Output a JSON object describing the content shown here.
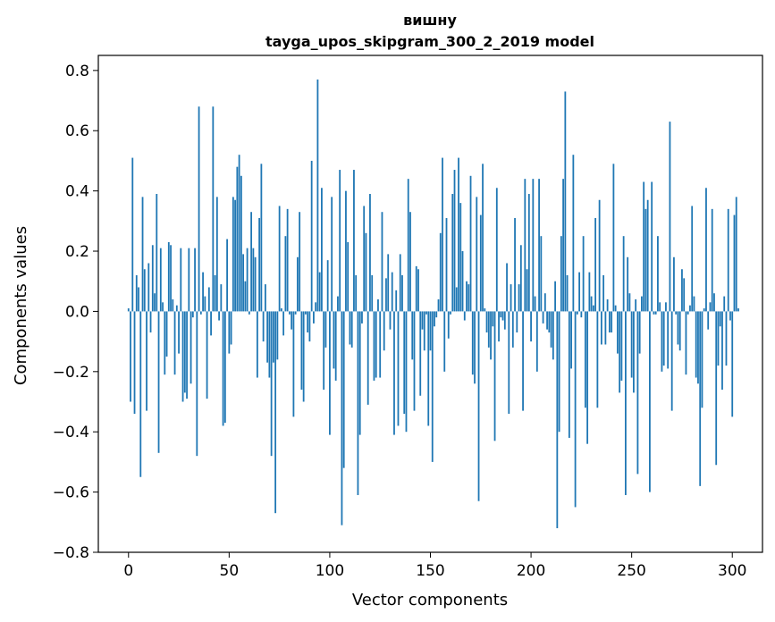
{
  "chart_data": {
    "type": "bar",
    "title": "вишну",
    "subtitle": "tayga_upos_skipgram_300_2_2019 model",
    "xlabel": "Vector components",
    "ylabel": "Components values",
    "xlim": [
      -15,
      315
    ],
    "ylim": [
      -0.8,
      0.85
    ],
    "xticks": [
      0,
      50,
      100,
      150,
      200,
      250,
      300
    ],
    "xtick_labels": [
      "0",
      "50",
      "100",
      "150",
      "200",
      "250",
      "300"
    ],
    "yticks": [
      -0.8,
      -0.6,
      -0.4,
      -0.2,
      0.0,
      0.2,
      0.4,
      0.6,
      0.8
    ],
    "ytick_labels": [
      "−0.8",
      "−0.6",
      "−0.4",
      "−0.2",
      "0.0",
      "0.2",
      "0.4",
      "0.6",
      "0.8"
    ],
    "grid": false,
    "bar_color": "#1f77b4",
    "values": [
      0.01,
      -0.3,
      0.51,
      -0.34,
      0.12,
      0.08,
      -0.55,
      0.38,
      0.14,
      -0.33,
      0.16,
      -0.07,
      0.22,
      0.06,
      0.39,
      -0.47,
      0.21,
      0.03,
      -0.21,
      -0.15,
      0.23,
      0.22,
      0.04,
      -0.21,
      0.02,
      -0.14,
      0.21,
      -0.3,
      -0.27,
      -0.29,
      0.21,
      -0.24,
      -0.02,
      0.21,
      -0.48,
      0.68,
      -0.01,
      0.13,
      0.05,
      -0.29,
      0.08,
      -0.08,
      0.68,
      0.12,
      0.38,
      -0.03,
      0.09,
      -0.38,
      -0.37,
      0.24,
      -0.14,
      -0.11,
      0.38,
      0.37,
      0.48,
      0.52,
      0.45,
      0.19,
      0.1,
      0.21,
      -0.01,
      0.33,
      0.21,
      0.18,
      -0.22,
      0.31,
      0.49,
      -0.1,
      0.09,
      -0.17,
      -0.22,
      -0.48,
      -0.17,
      -0.67,
      -0.16,
      0.35,
      0.01,
      -0.08,
      0.25,
      0.34,
      -0.01,
      -0.06,
      -0.35,
      -0.01,
      0.18,
      0.33,
      -0.26,
      -0.3,
      -0.01,
      -0.07,
      -0.1,
      0.5,
      -0.04,
      0.03,
      0.77,
      0.13,
      0.41,
      -0.26,
      -0.12,
      0.17,
      -0.41,
      0.38,
      -0.19,
      -0.23,
      0.05,
      0.47,
      -0.71,
      -0.52,
      0.4,
      0.23,
      -0.11,
      -0.12,
      0.47,
      0.12,
      -0.61,
      -0.41,
      -0.04,
      0.35,
      0.26,
      -0.31,
      0.39,
      0.12,
      -0.23,
      -0.22,
      0.04,
      -0.22,
      0.33,
      -0.13,
      0.11,
      0.19,
      -0.06,
      0.13,
      -0.41,
      0.07,
      -0.38,
      0.19,
      0.12,
      -0.34,
      -0.4,
      0.44,
      0.33,
      -0.16,
      -0.33,
      0.15,
      0.14,
      -0.28,
      -0.06,
      -0.13,
      -0.01,
      -0.38,
      -0.13,
      -0.5,
      -0.05,
      -0.02,
      0.04,
      0.26,
      0.51,
      -0.2,
      0.31,
      -0.09,
      -0.01,
      0.39,
      0.47,
      0.08,
      0.51,
      0.36,
      0.2,
      -0.03,
      0.1,
      0.09,
      0.45,
      -0.21,
      -0.24,
      0.38,
      -0.63,
      0.32,
      0.49,
      0.01,
      -0.07,
      -0.12,
      -0.16,
      -0.05,
      -0.43,
      0.41,
      -0.1,
      -0.02,
      -0.03,
      -0.06,
      0.16,
      -0.34,
      0.09,
      -0.12,
      0.31,
      -0.07,
      0.09,
      0.22,
      -0.33,
      0.44,
      0.14,
      0.39,
      -0.1,
      0.44,
      0.05,
      -0.2,
      0.44,
      0.25,
      -0.04,
      0.06,
      -0.06,
      -0.07,
      -0.12,
      -0.16,
      0.1,
      -0.72,
      -0.4,
      0.25,
      0.44,
      0.73,
      0.12,
      -0.42,
      -0.19,
      0.52,
      -0.65,
      -0.01,
      0.13,
      -0.02,
      0.25,
      -0.32,
      -0.44,
      0.13,
      0.05,
      0.02,
      0.31,
      -0.32,
      0.37,
      -0.11,
      0.12,
      -0.11,
      0.04,
      -0.07,
      -0.07,
      0.49,
      0.02,
      -0.14,
      -0.27,
      -0.23,
      0.25,
      -0.61,
      0.18,
      0.06,
      -0.22,
      -0.27,
      0.04,
      -0.54,
      -0.14,
      0.05,
      0.43,
      0.34,
      0.37,
      -0.6,
      0.43,
      -0.01,
      -0.01,
      0.25,
      0.03,
      -0.2,
      -0.18,
      0.03,
      -0.19,
      0.63,
      -0.33,
      0.18,
      -0.01,
      -0.11,
      -0.13,
      0.14,
      0.11,
      -0.21,
      -0.01,
      0.02,
      0.35,
      0.05,
      -0.22,
      -0.24,
      -0.58,
      -0.32,
      0.01,
      0.41,
      -0.06,
      0.03,
      0.34,
      0.06,
      -0.51,
      -0.18,
      -0.05,
      -0.26,
      0.05,
      -0.18,
      0.34,
      -0.03,
      -0.35,
      0.32,
      0.38,
      0.01
    ]
  }
}
